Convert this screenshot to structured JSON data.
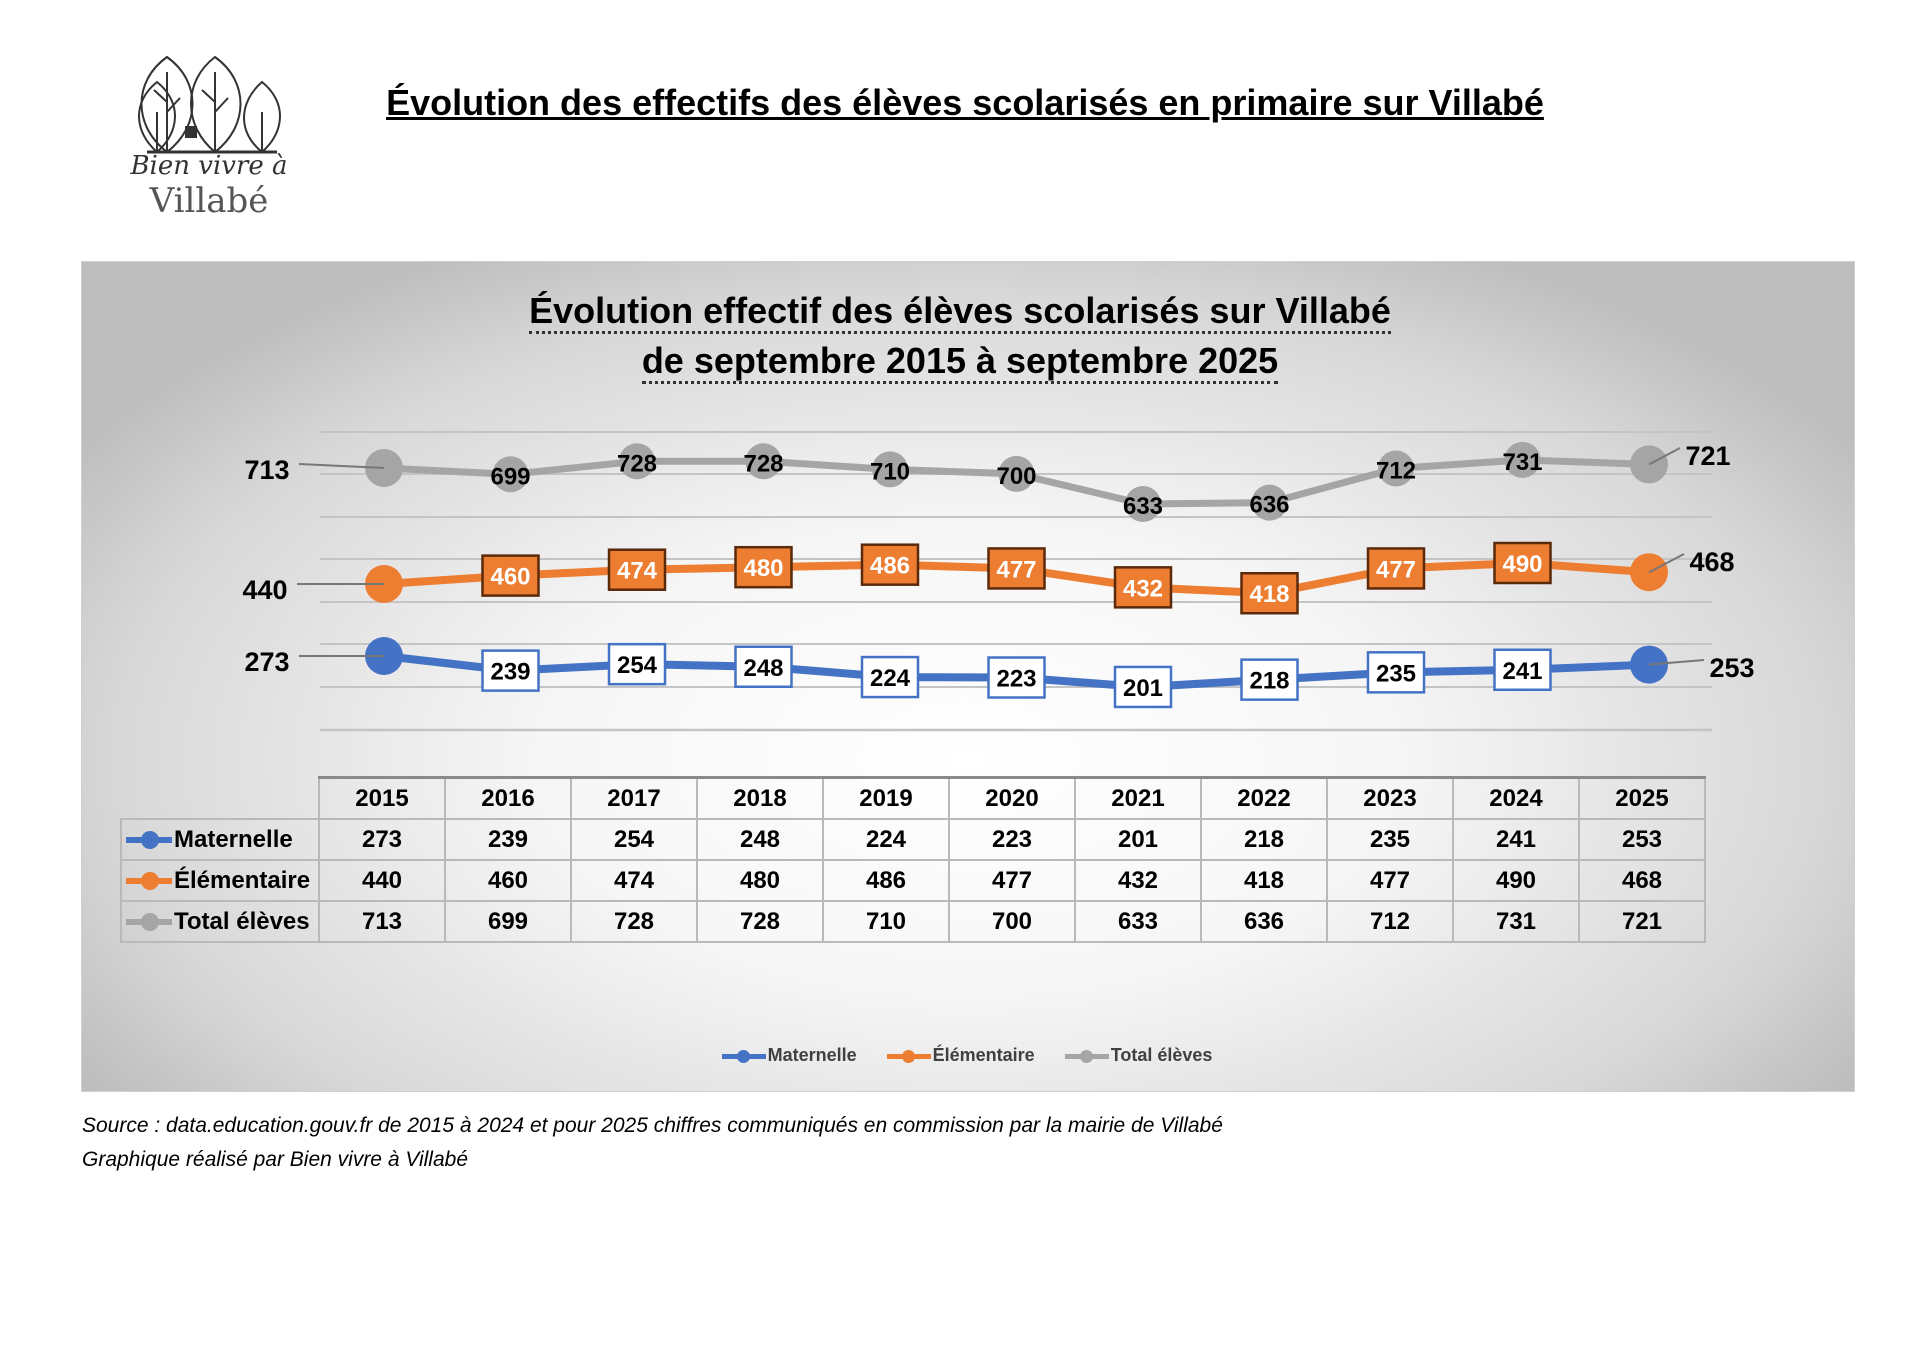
{
  "header": {
    "title": "Évolution des effectifs des élèves scolarisés en primaire sur Villabé",
    "logo_text_line1": "Bien vivre à",
    "logo_text_line2": "Villabé"
  },
  "chart_data": {
    "type": "line",
    "title_line1": "Évolution effectif des élèves scolarisés sur Villabé",
    "title_line2": "de septembre 2015 à septembre 2025",
    "categories": [
      "2015",
      "2016",
      "2017",
      "2018",
      "2019",
      "2020",
      "2021",
      "2022",
      "2023",
      "2024",
      "2025"
    ],
    "series": [
      {
        "name": "Maternelle",
        "color": "#4472c4",
        "values": [
          273,
          239,
          254,
          248,
          224,
          223,
          201,
          218,
          235,
          241,
          253
        ]
      },
      {
        "name": "Élémentaire",
        "color": "#ed7d31",
        "values": [
          440,
          460,
          474,
          480,
          486,
          477,
          432,
          418,
          477,
          490,
          468
        ]
      },
      {
        "name": "Total élèves",
        "color": "#a5a5a5",
        "values": [
          713,
          699,
          728,
          728,
          710,
          700,
          633,
          636,
          712,
          731,
          721
        ]
      }
    ],
    "grid": true,
    "legend": "bottom-center",
    "data_table": true
  },
  "footer": {
    "source": "Source : data.education.gouv.fr de 2015 à 2024 et pour 2025 chiffres communiqués en commission par la mairie de Villabé",
    "credit": "Graphique réalisé par Bien vivre à Villabé"
  }
}
